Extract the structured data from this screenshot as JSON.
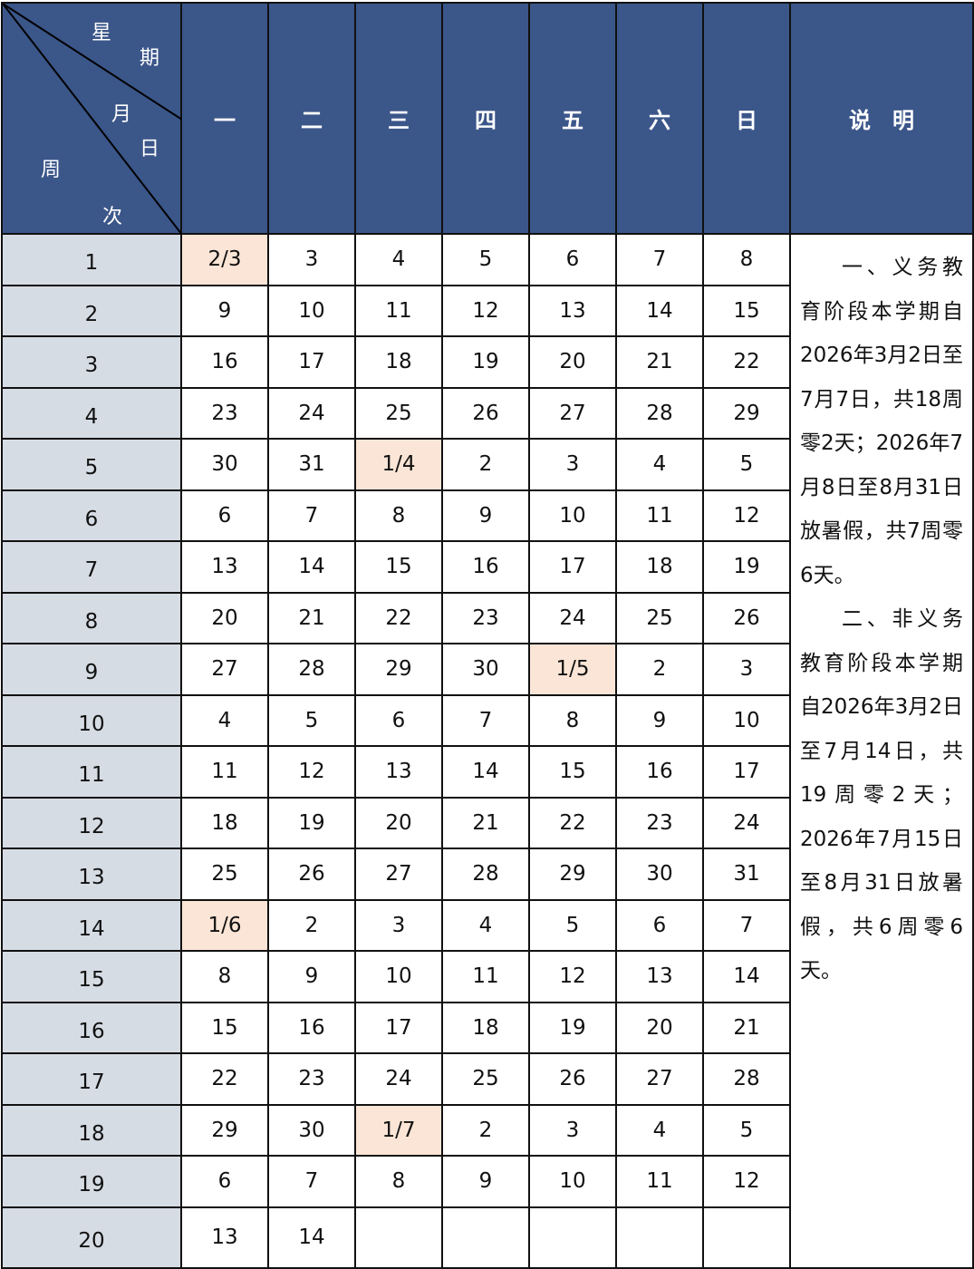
{
  "header": {
    "corner": {
      "weekday_label": [
        "星",
        "期"
      ],
      "date_label": [
        "月",
        "日"
      ],
      "week_label": [
        "周",
        "次"
      ]
    },
    "days": [
      "一",
      "二",
      "三",
      "四",
      "五",
      "六",
      "日"
    ],
    "notes_title": "说　明"
  },
  "colors": {
    "header_bg": "#3b5689",
    "week_col_bg": "#d6dce4",
    "month_start_highlight": "#fbe5d6"
  },
  "rows": [
    {
      "week": "1",
      "dates": [
        "2/3",
        "3",
        "4",
        "5",
        "6",
        "7",
        "8"
      ],
      "highlight": [
        0
      ]
    },
    {
      "week": "2",
      "dates": [
        "9",
        "10",
        "11",
        "12",
        "13",
        "14",
        "15"
      ],
      "highlight": []
    },
    {
      "week": "3",
      "dates": [
        "16",
        "17",
        "18",
        "19",
        "20",
        "21",
        "22"
      ],
      "highlight": []
    },
    {
      "week": "4",
      "dates": [
        "23",
        "24",
        "25",
        "26",
        "27",
        "28",
        "29"
      ],
      "highlight": []
    },
    {
      "week": "5",
      "dates": [
        "30",
        "31",
        "1/4",
        "2",
        "3",
        "4",
        "5"
      ],
      "highlight": [
        2
      ]
    },
    {
      "week": "6",
      "dates": [
        "6",
        "7",
        "8",
        "9",
        "10",
        "11",
        "12"
      ],
      "highlight": []
    },
    {
      "week": "7",
      "dates": [
        "13",
        "14",
        "15",
        "16",
        "17",
        "18",
        "19"
      ],
      "highlight": []
    },
    {
      "week": "8",
      "dates": [
        "20",
        "21",
        "22",
        "23",
        "24",
        "25",
        "26"
      ],
      "highlight": []
    },
    {
      "week": "9",
      "dates": [
        "27",
        "28",
        "29",
        "30",
        "1/5",
        "2",
        "3"
      ],
      "highlight": [
        4
      ]
    },
    {
      "week": "10",
      "dates": [
        "4",
        "5",
        "6",
        "7",
        "8",
        "9",
        "10"
      ],
      "highlight": []
    },
    {
      "week": "11",
      "dates": [
        "11",
        "12",
        "13",
        "14",
        "15",
        "16",
        "17"
      ],
      "highlight": []
    },
    {
      "week": "12",
      "dates": [
        "18",
        "19",
        "20",
        "21",
        "22",
        "23",
        "24"
      ],
      "highlight": []
    },
    {
      "week": "13",
      "dates": [
        "25",
        "26",
        "27",
        "28",
        "29",
        "30",
        "31"
      ],
      "highlight": []
    },
    {
      "week": "14",
      "dates": [
        "1/6",
        "2",
        "3",
        "4",
        "5",
        "6",
        "7"
      ],
      "highlight": [
        0
      ]
    },
    {
      "week": "15",
      "dates": [
        "8",
        "9",
        "10",
        "11",
        "12",
        "13",
        "14"
      ],
      "highlight": []
    },
    {
      "week": "16",
      "dates": [
        "15",
        "16",
        "17",
        "18",
        "19",
        "20",
        "21"
      ],
      "highlight": []
    },
    {
      "week": "17",
      "dates": [
        "22",
        "23",
        "24",
        "25",
        "26",
        "27",
        "28"
      ],
      "highlight": []
    },
    {
      "week": "18",
      "dates": [
        "29",
        "30",
        "1/7",
        "2",
        "3",
        "4",
        "5"
      ],
      "highlight": [
        2
      ]
    },
    {
      "week": "19",
      "dates": [
        "6",
        "7",
        "8",
        "9",
        "10",
        "11",
        "12"
      ],
      "highlight": []
    },
    {
      "week": "20",
      "dates": [
        "13",
        "14",
        "",
        "",
        "",
        "",
        ""
      ],
      "highlight": []
    }
  ],
  "notes": [
    "一、义务教育阶段本学期自2026年3月2日至7月7日，共18周零2天；2026年7月8日至8月31日放暑假，共7周零6天。",
    "二、非义务教育阶段本学期自2026年3月2日至7月14日，共19周零2天；2026年7月15日至8月31日放暑假，共6周零6天。"
  ]
}
